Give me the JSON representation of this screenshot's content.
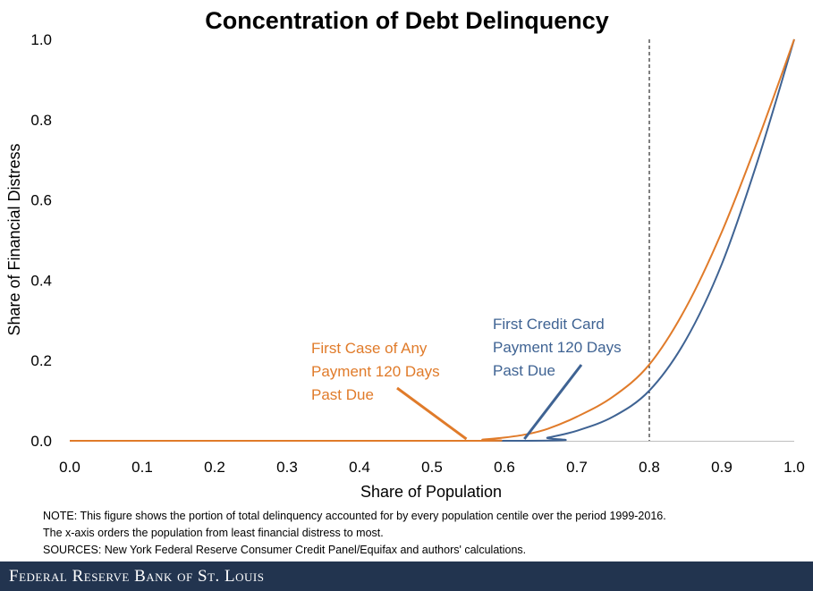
{
  "chart_data": {
    "type": "line",
    "title": "Concentration of Debt Delinquency",
    "xlabel": "Share of Population",
    "ylabel": "Share of Financial Distress",
    "xlim": [
      0,
      1
    ],
    "ylim": [
      0,
      1
    ],
    "x_ticks": [
      "0.0",
      "0.1",
      "0.2",
      "0.3",
      "0.4",
      "0.5",
      "0.6",
      "0.7",
      "0.8",
      "0.9",
      "1.0"
    ],
    "y_ticks": [
      "0.0",
      "0.2",
      "0.4",
      "0.6",
      "0.8",
      "1.0"
    ],
    "grid": false,
    "reference_line": {
      "x": 0.8,
      "style": "dashed"
    },
    "series": [
      {
        "name": "First Case of Any Payment 120 Days Past Due",
        "color": "#e07b2a",
        "x": [
          0.0,
          0.55,
          0.57,
          0.6,
          0.63,
          0.66,
          0.7,
          0.75,
          0.8,
          0.85,
          0.9,
          0.95,
          1.0
        ],
        "y": [
          0.0,
          0.0,
          0.003,
          0.008,
          0.016,
          0.03,
          0.06,
          0.11,
          0.19,
          0.33,
          0.52,
          0.75,
          1.0
        ]
      },
      {
        "name": "First Credit Card Payment 120 Days Past Due",
        "color": "#3f6393",
        "x": [
          0.0,
          0.63,
          0.66,
          0.7,
          0.75,
          0.8,
          0.85,
          0.9,
          0.95,
          1.0
        ],
        "y": [
          0.0,
          0.0,
          0.008,
          0.025,
          0.06,
          0.125,
          0.25,
          0.44,
          0.7,
          1.0
        ]
      }
    ],
    "annotations": [
      {
        "lines": [
          "First Case of Any",
          "Payment 120 Days",
          "Past Due"
        ],
        "color": "#e07b2a",
        "points_to": [
          0.55,
          0.0
        ]
      },
      {
        "lines": [
          "First Credit Card",
          "Payment 120 Days",
          "Past Due"
        ],
        "color": "#3f6393",
        "points_to": [
          0.63,
          0.0
        ]
      }
    ]
  },
  "notes": [
    "NOTE: This figure shows the portion of total delinquency accounted for by every population centile over the period 1999-2016.",
    "The x-axis orders the population from least financial distress to most.",
    "SOURCES: New York Federal Reserve Consumer Credit Panel/Equifax and authors' calculations."
  ],
  "footer": {
    "brand": "Federal Reserve Bank of St. Louis"
  }
}
